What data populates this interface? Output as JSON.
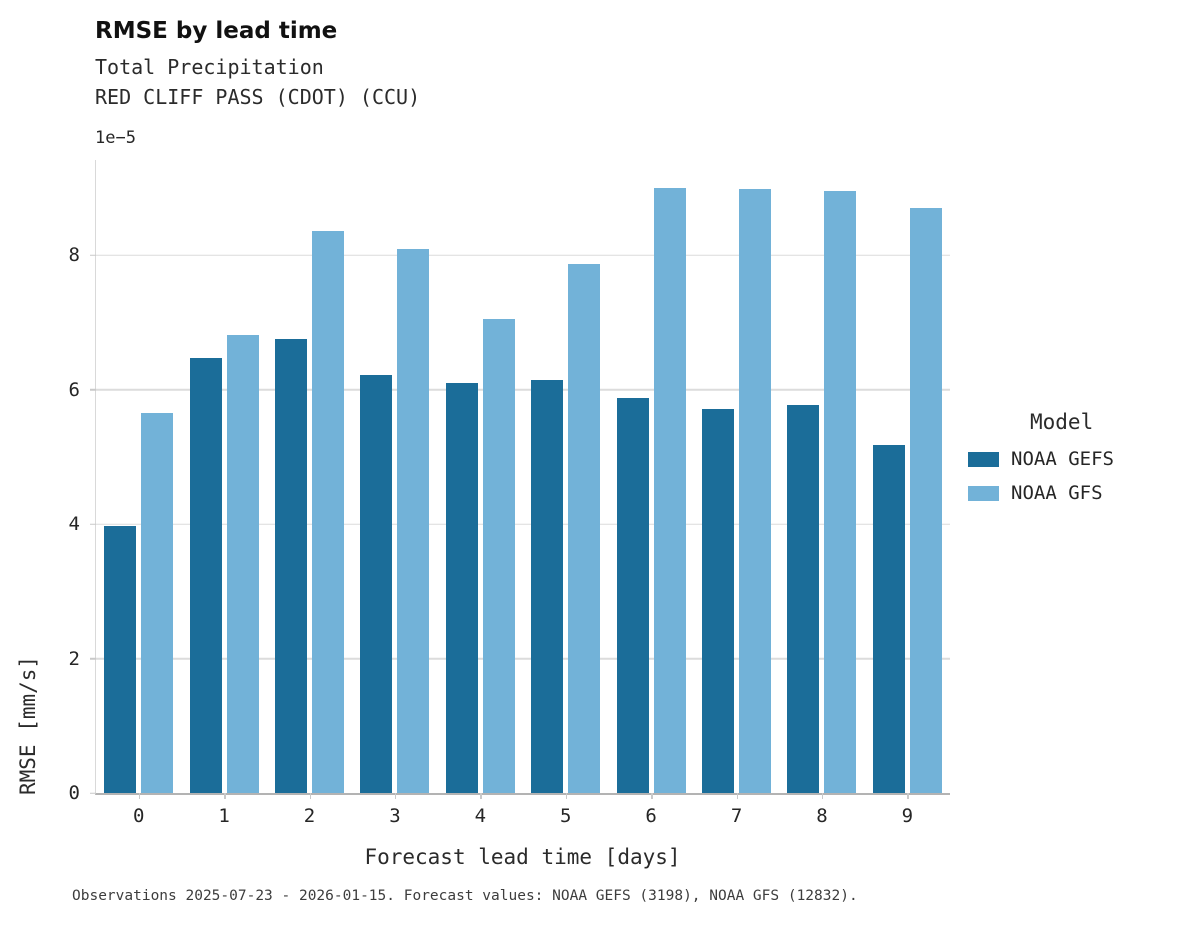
{
  "header": {
    "title": "RMSE by lead time",
    "subtitle1": "Total Precipitation",
    "subtitle2": "RED CLIFF PASS (CDOT) (CCU)"
  },
  "chart_data": {
    "type": "bar",
    "title": "RMSE by lead time",
    "subtitle": "Total Precipitation — RED CLIFF PASS (CDOT) (CCU)",
    "categories": [
      "0",
      "1",
      "2",
      "3",
      "4",
      "5",
      "6",
      "7",
      "8",
      "9"
    ],
    "series": [
      {
        "name": "NOAA GEFS",
        "color": "#1b6d99",
        "values": [
          3.98,
          6.48,
          6.75,
          6.22,
          6.1,
          6.14,
          5.88,
          5.72,
          5.78,
          5.18
        ]
      },
      {
        "name": "NOAA GFS",
        "color": "#72b2d8",
        "values": [
          5.65,
          6.81,
          8.36,
          8.1,
          7.05,
          7.87,
          9.01,
          8.99,
          8.96,
          8.7
        ]
      }
    ],
    "value_units_multiplier": "1e-5",
    "y_scale_label": "1e−5",
    "xlabel": "Forecast lead time [days]",
    "ylabel": "RMSE [mm/s]",
    "yticks": [
      0,
      2,
      4,
      6,
      8
    ],
    "ylim": [
      0,
      9.42
    ],
    "grid": "horizontal",
    "legend_title": "Model",
    "legend_position": "right"
  },
  "footer": {
    "caption": "Observations 2025-07-23 - 2026-01-15. Forecast values: NOAA GEFS (3198), NOAA GFS (12832)."
  }
}
